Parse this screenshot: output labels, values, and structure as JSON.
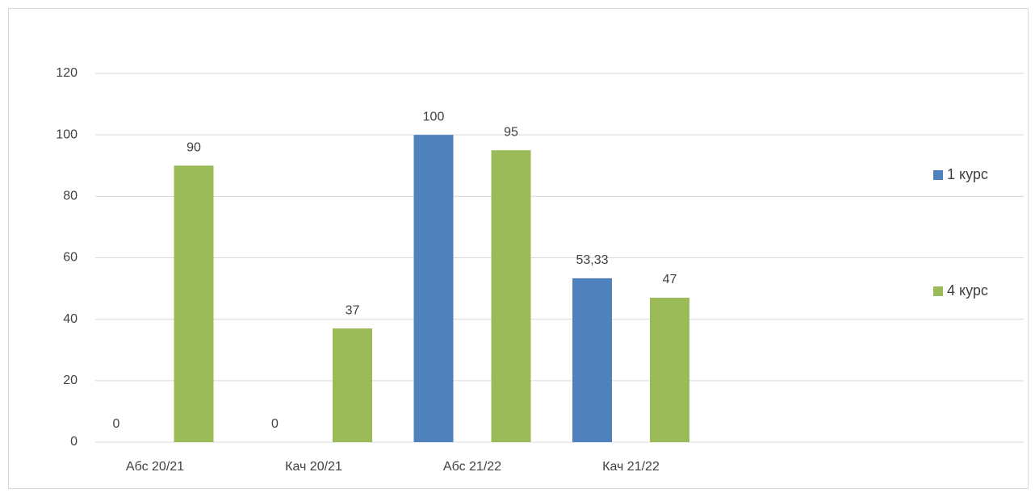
{
  "chart_data": {
    "type": "bar",
    "categories": [
      "Абс 20/21",
      "Кач 20/21",
      "Абс 21/22",
      "Кач 21/22"
    ],
    "series": [
      {
        "name": "1 курс",
        "color": "#4f81bd",
        "values": [
          0,
          0,
          100,
          53.33
        ],
        "value_labels": [
          "0",
          "0",
          "100",
          "53,33"
        ]
      },
      {
        "name": "4 курс",
        "color": "#9bbb59",
        "values": [
          90,
          37,
          95,
          47
        ]
      }
    ],
    "ylim": [
      0,
      120
    ],
    "yticks": [
      0,
      20,
      40,
      60,
      80,
      100,
      120
    ],
    "grid": true,
    "legend": "right"
  }
}
